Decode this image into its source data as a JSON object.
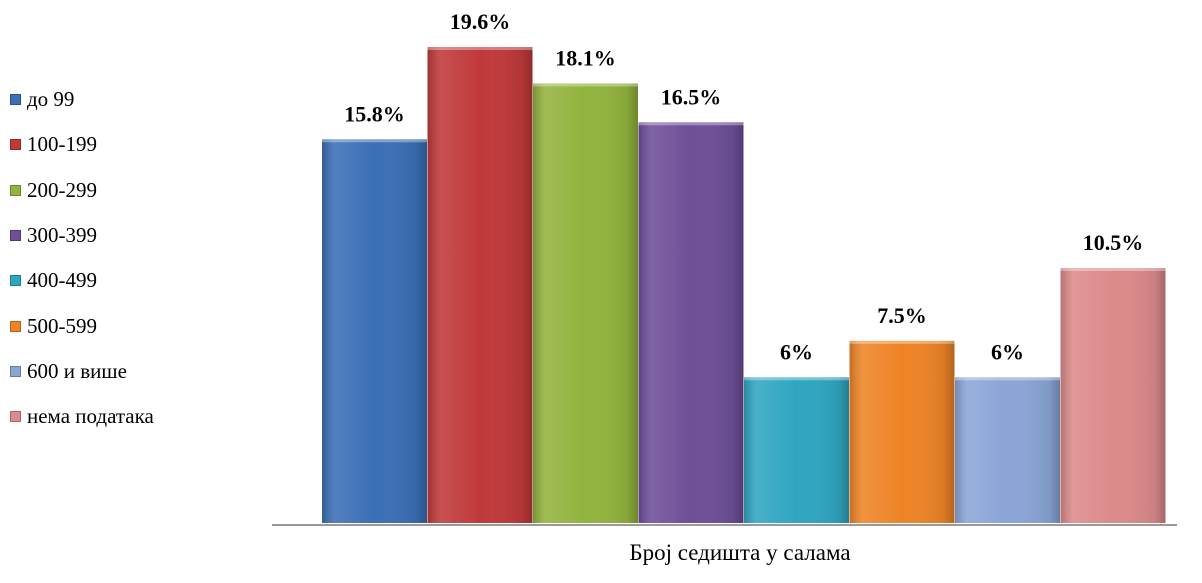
{
  "chart_data": {
    "type": "bar",
    "categories": [
      "до 99",
      "100-199",
      "200-299",
      "300-399",
      "400-499",
      "500-599",
      "600 и више",
      "нема података"
    ],
    "values": [
      15.8,
      19.6,
      18.1,
      16.5,
      6,
      7.5,
      6,
      10.5
    ],
    "value_labels": [
      "15.8%",
      "19.6%",
      "18.1%",
      "16.5%",
      "6%",
      "7.5%",
      "6%",
      "10.5%"
    ],
    "colors": [
      "#3b6fb6",
      "#c0393a",
      "#92b33d",
      "#6e4f98",
      "#2fa6c1",
      "#ee8426",
      "#8aa5d6",
      "#dc8a8a"
    ],
    "title": "",
    "xlabel": "Број седишта у салама",
    "ylabel": "",
    "ylim": [
      0,
      20
    ],
    "legend_position": "left",
    "grid": false
  }
}
